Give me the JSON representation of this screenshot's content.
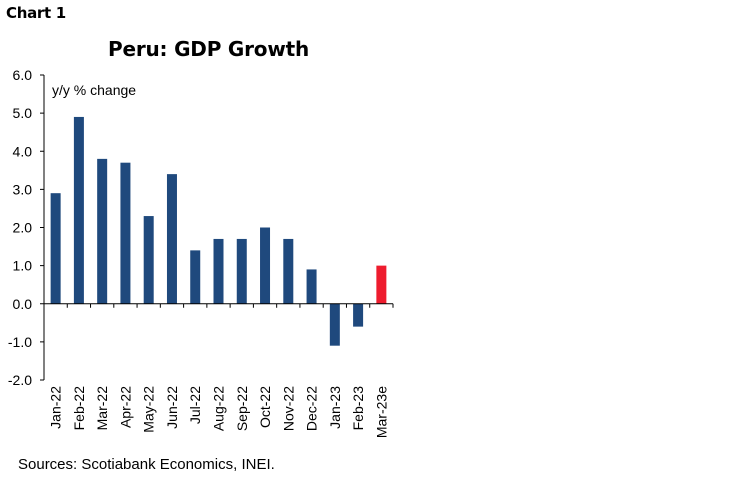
{
  "header": {
    "chart_label": "Chart 1"
  },
  "footer": {
    "source": "Sources: Scotiabank Economics, INEI."
  },
  "chart_data": {
    "type": "bar",
    "title": "Peru: GDP Growth",
    "ylabel": "y/y % change",
    "xlabel": "",
    "categories": [
      "Jan-22",
      "Feb-22",
      "Mar-22",
      "Apr-22",
      "May-22",
      "Jun-22",
      "Jul-22",
      "Aug-22",
      "Sep-22",
      "Oct-22",
      "Nov-22",
      "Dec-22",
      "Jan-23",
      "Feb-23",
      "Mar-23e"
    ],
    "values": [
      2.9,
      4.9,
      3.8,
      3.7,
      2.3,
      3.4,
      1.4,
      1.7,
      1.7,
      2.0,
      1.7,
      0.9,
      -1.1,
      -0.6,
      1.0
    ],
    "ylim": [
      -2.0,
      6.0
    ],
    "yticks": [
      "6.0",
      "5.0",
      "4.0",
      "3.0",
      "2.0",
      "1.0",
      "0.0",
      "-1.0",
      "-2.0"
    ],
    "ytick_values": [
      6,
      5,
      4,
      3,
      2,
      1,
      0,
      -1,
      -2
    ],
    "colors": {
      "actual": "#1f497d",
      "estimate": "#ee1c2e",
      "axis": "#000000"
    },
    "estimate_index": 14,
    "grid": false,
    "legend": "none"
  }
}
